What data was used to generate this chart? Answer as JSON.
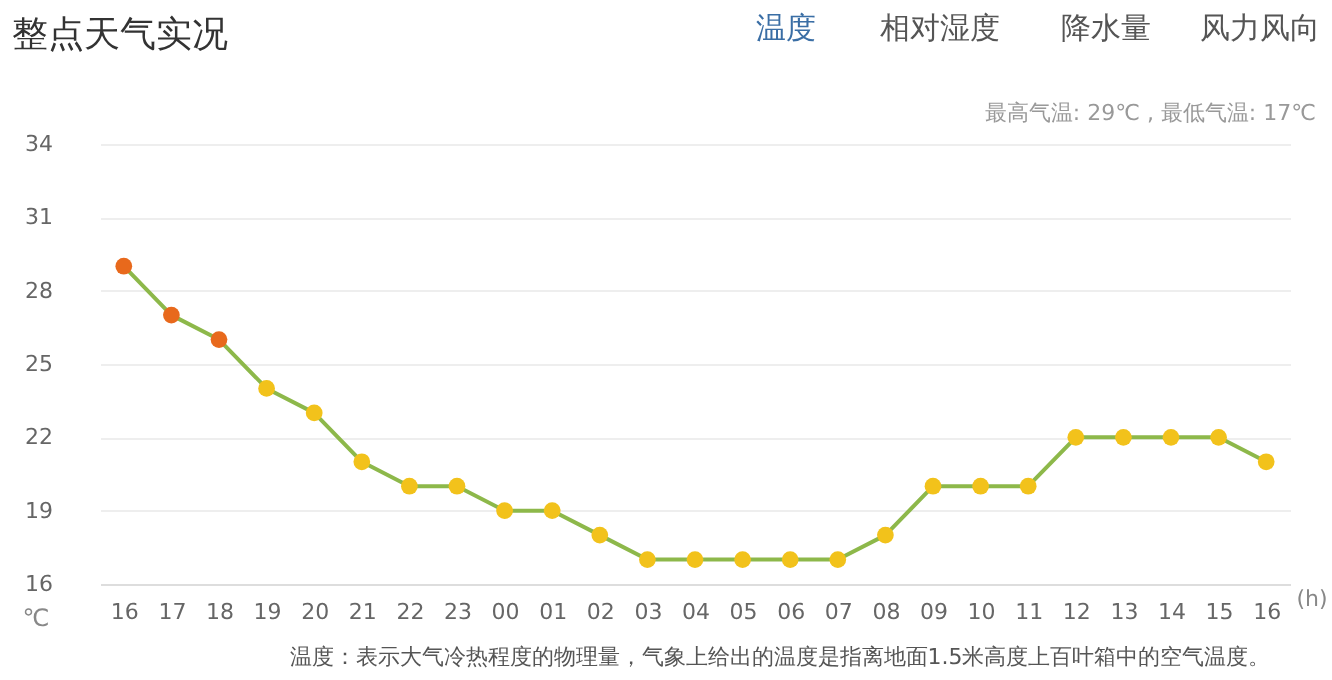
{
  "chart_data": {
    "type": "line",
    "title": "整点天气实况",
    "xlabel": "(h)",
    "ylabel": "℃",
    "categories": [
      "16",
      "17",
      "18",
      "19",
      "20",
      "21",
      "22",
      "23",
      "00",
      "01",
      "02",
      "03",
      "04",
      "05",
      "06",
      "07",
      "08",
      "09",
      "10",
      "11",
      "12",
      "13",
      "14",
      "15",
      "16"
    ],
    "series": [
      {
        "color": "#8db84a",
        "values": [
          29,
          27,
          26,
          24,
          23,
          21,
          20,
          20,
          19,
          19,
          18,
          17,
          17,
          17,
          17,
          17,
          18,
          20,
          20,
          20,
          22,
          22,
          22,
          22,
          21
        ],
        "colors": [
          "#e8691c",
          "#e8691c",
          "#e8691c",
          "#f2c21b",
          "#f2c21b",
          "#f2c21b",
          "#f2c21b",
          "#f2c21b",
          "#f2c21b",
          "#f2c21b",
          "#f2c21b",
          "#f2c21b",
          "#f2c21b",
          "#f2c21b",
          "#f2c21b",
          "#f2c21b",
          "#f2c21b",
          "#f2c21b",
          "#f2c21b",
          "#f2c21b",
          "#f2c21b",
          "#f2c21b",
          "#f2c21b",
          "#f2c21b",
          "#f2c21b"
        ]
      }
    ],
    "ylim": [
      16,
      34
    ],
    "yticks": [
      16,
      19,
      22,
      25,
      28,
      31,
      34
    ],
    "grid": "y",
    "marker": "circle",
    "line_style": "solid",
    "annotations": [
      "温度",
      "相对湿度",
      "降水量",
      "风力风向",
      "最高气温: 29℃ , 最低气温: 17℃",
      "温度：表示大气冷热程度的物理量，气象上给出的温度是指离地面1.5米高度上百叶箱中的空气温度。"
    ]
  }
}
